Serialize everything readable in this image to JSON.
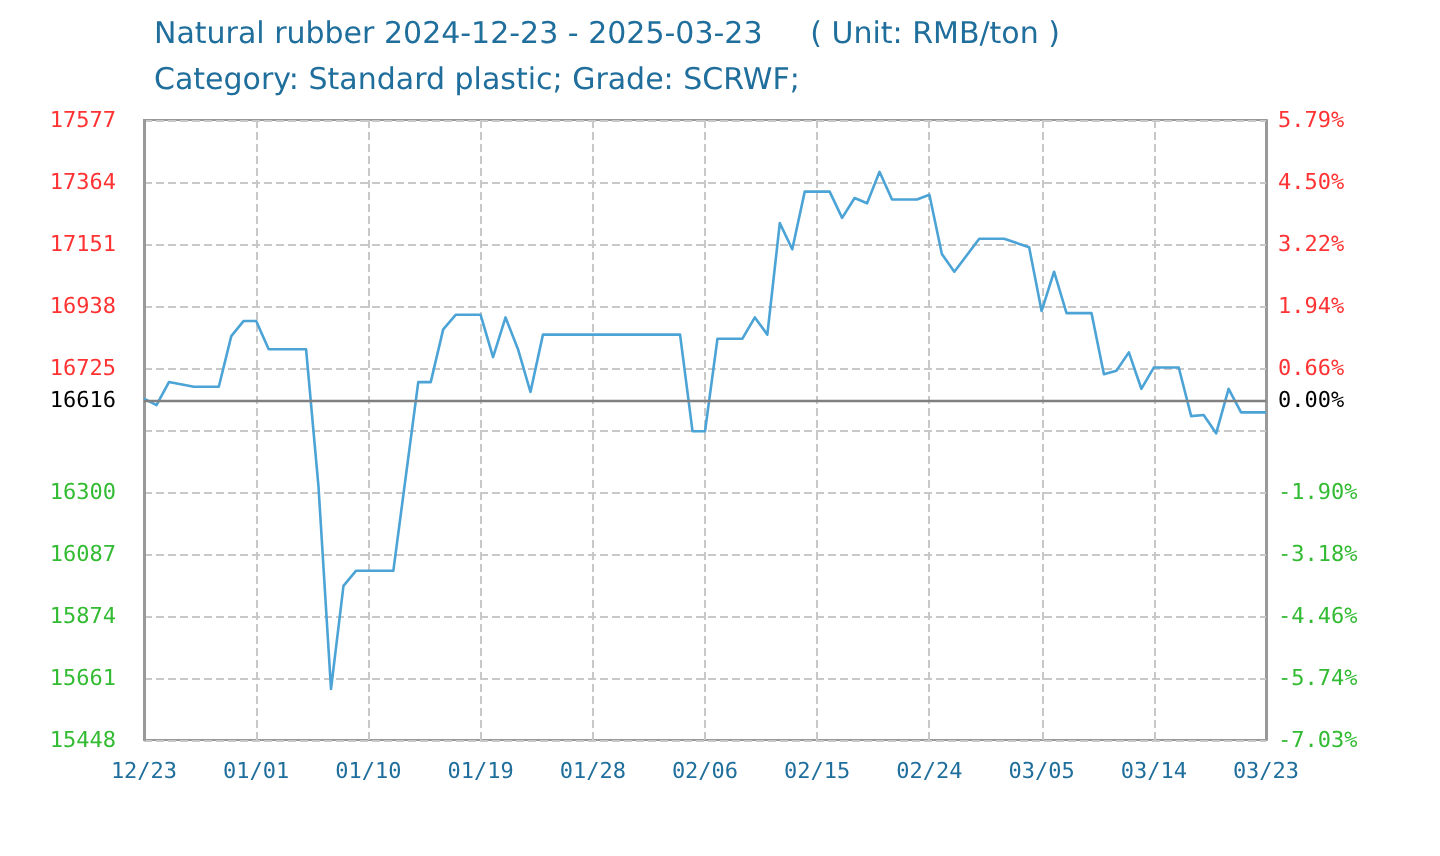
{
  "chart_data": {
    "type": "line",
    "title": "Natural rubber 2024-12-23 - 2025-03-23     ( Unit: RMB/ton )",
    "subtitle": "Category: Standard plastic; Grade: SCRWF;",
    "x": [
      "2024-12-23",
      "2024-12-24",
      "2024-12-25",
      "2024-12-27",
      "2024-12-29",
      "2024-12-30",
      "2024-12-31",
      "2025-01-01",
      "2025-01-02",
      "2025-01-05",
      "2025-01-06",
      "2025-01-07",
      "2025-01-08",
      "2025-01-09",
      "2025-01-12",
      "2025-01-14",
      "2025-01-15",
      "2025-01-16",
      "2025-01-17",
      "2025-01-19",
      "2025-01-20",
      "2025-01-21",
      "2025-01-22",
      "2025-01-23",
      "2025-01-24",
      "2025-02-04",
      "2025-02-05",
      "2025-02-06",
      "2025-02-07",
      "2025-02-09",
      "2025-02-10",
      "2025-02-11",
      "2025-02-12",
      "2025-02-13",
      "2025-02-14",
      "2025-02-16",
      "2025-02-17",
      "2025-02-18",
      "2025-02-19",
      "2025-02-20",
      "2025-02-21",
      "2025-02-23",
      "2025-02-24",
      "2025-02-25",
      "2025-02-26",
      "2025-02-28",
      "2025-03-02",
      "2025-03-04",
      "2025-03-05",
      "2025-03-06",
      "2025-03-07",
      "2025-03-09",
      "2025-03-10",
      "2025-03-11",
      "2025-03-12",
      "2025-03-13",
      "2025-03-14",
      "2025-03-16",
      "2025-03-17",
      "2025-03-18",
      "2025-03-19",
      "2025-03-20",
      "2025-03-21",
      "2025-03-23"
    ],
    "series": [
      {
        "color": "#4ba3d6",
        "values": [
          16620,
          16598,
          16677,
          16661,
          16661,
          16835,
          16887,
          16887,
          16790,
          16790,
          16316,
          15623,
          15977,
          16029,
          16029,
          16677,
          16677,
          16858,
          16908,
          16908,
          16763,
          16899,
          16790,
          16643,
          16840,
          16840,
          16508,
          16508,
          16826,
          16826,
          16899,
          16840,
          17223,
          17133,
          17331,
          17331,
          17241,
          17309,
          17291,
          17399,
          17304,
          17304,
          17320,
          17117,
          17056,
          17169,
          17169,
          17140,
          16921,
          17056,
          16914,
          16914,
          16704,
          16716,
          16779,
          16654,
          16727,
          16727,
          16560,
          16564,
          16501,
          16654,
          16573,
          16573
        ]
      }
    ],
    "xlim": [
      "2024-12-23",
      "2025-03-23"
    ],
    "xticks": [
      {
        "value": "2024-12-23",
        "label": "12/23"
      },
      {
        "value": "2025-01-01",
        "label": "01/01"
      },
      {
        "value": "2025-01-10",
        "label": "01/10"
      },
      {
        "value": "2025-01-19",
        "label": "01/19"
      },
      {
        "value": "2025-01-28",
        "label": "01/28"
      },
      {
        "value": "2025-02-06",
        "label": "02/06"
      },
      {
        "value": "2025-02-15",
        "label": "02/15"
      },
      {
        "value": "2025-02-24",
        "label": "02/24"
      },
      {
        "value": "2025-03-05",
        "label": "03/05"
      },
      {
        "value": "2025-03-14",
        "label": "03/14"
      },
      {
        "value": "2025-03-23",
        "label": "03/23"
      }
    ],
    "ylim": [
      15448,
      17577
    ],
    "yticks": [
      15448,
      15661,
      15874,
      16087,
      16300,
      {
        "value": 16512,
        "label": null
      },
      16616,
      16725,
      16938,
      17151,
      17364,
      17577
    ],
    "y2lim": [
      -7.03,
      5.79
    ],
    "y2ticks": [
      {
        "value": -7.03,
        "label": "-7.03%"
      },
      {
        "value": -5.74,
        "label": "-5.74%"
      },
      {
        "value": -4.46,
        "label": "-4.46%"
      },
      {
        "value": -3.18,
        "label": "-3.18%"
      },
      {
        "value": -1.9,
        "label": "-1.90%"
      },
      {
        "value": -0.62,
        "label": null
      },
      {
        "value": 0,
        "label": "0.00%"
      },
      {
        "value": 0.66,
        "label": "0.66%"
      },
      {
        "value": 1.94,
        "label": "1.94%"
      },
      {
        "value": 3.22,
        "label": "3.22%"
      },
      {
        "value": 4.5,
        "label": "4.50%"
      },
      {
        "value": 5.79,
        "label": "5.79%"
      }
    ],
    "ref_lines": [
      {
        "axis": "y",
        "value": 16616,
        "color": "#808080"
      }
    ],
    "grid": true,
    "marker": "none",
    "line_style": "solid"
  }
}
